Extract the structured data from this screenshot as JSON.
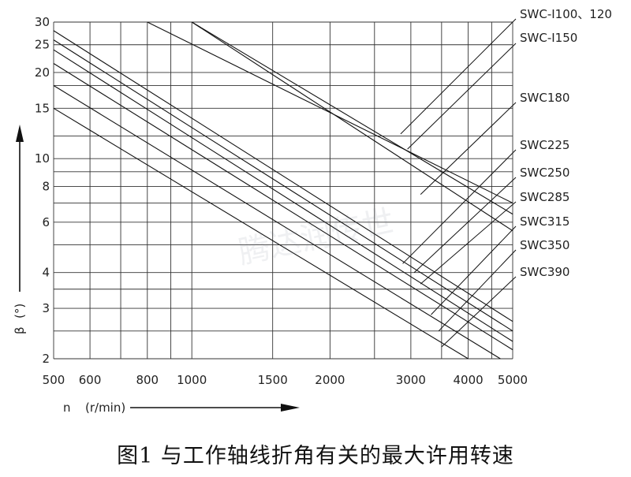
{
  "chart_data": {
    "type": "line",
    "title": "",
    "caption": "图1 与工作轴线折角有关的最大许用转速",
    "xlabel": "n",
    "xunit": "(r/min)",
    "ylabel": "β",
    "yunit": "(°)",
    "x_scale": "log",
    "y_scale": "log",
    "xlim": [
      500,
      5000
    ],
    "ylim": [
      2,
      30
    ],
    "x_ticks": [
      500,
      600,
      800,
      1000,
      1500,
      2000,
      3000,
      4000,
      5000
    ],
    "y_ticks": [
      2,
      3,
      4,
      6,
      8,
      10,
      15,
      20,
      25,
      30
    ],
    "x_grid": [
      500,
      600,
      700,
      800,
      900,
      1000,
      1500,
      2000,
      2500,
      3000,
      3500,
      4000,
      4500,
      5000
    ],
    "y_grid": [
      2,
      2.5,
      3,
      3.5,
      4,
      5,
      6,
      7,
      8,
      9,
      10,
      12,
      15,
      18,
      20,
      25,
      30
    ],
    "grid": true,
    "legend": "labels at right with leader lines",
    "series": [
      {
        "name": "SWC-I100、120",
        "points": [
          [
            800,
            30
          ],
          [
            5000,
            7.0
          ]
        ]
      },
      {
        "name": "SWC-I150",
        "points": [
          [
            1000,
            30
          ],
          [
            5000,
            6.4
          ]
        ]
      },
      {
        "name": "SWC180",
        "points": [
          [
            1000,
            30
          ],
          [
            5000,
            5.6
          ]
        ]
      },
      {
        "name": "SWC225",
        "points": [
          [
            500,
            28
          ],
          [
            5000,
            2.7
          ]
        ]
      },
      {
        "name": "SWC250",
        "points": [
          [
            500,
            26
          ],
          [
            5000,
            2.5
          ]
        ]
      },
      {
        "name": "SWC285",
        "points": [
          [
            500,
            24
          ],
          [
            5000,
            2.3
          ]
        ]
      },
      {
        "name": "SWC315",
        "points": [
          [
            500,
            21.5
          ],
          [
            5000,
            2.15
          ]
        ]
      },
      {
        "name": "SWC350",
        "points": [
          [
            500,
            18
          ],
          [
            4700,
            2.0
          ]
        ]
      },
      {
        "name": "SWC390",
        "points": [
          [
            500,
            15
          ],
          [
            4000,
            2.0
          ]
        ]
      }
    ],
    "leader_lines": [
      {
        "series": "SWC-I100、120",
        "from": [
          2850,
          12.2
        ]
      },
      {
        "series": "SWC-I150",
        "from": [
          2950,
          10.8
        ]
      },
      {
        "series": "SWC180",
        "from": [
          3150,
          7.5
        ]
      },
      {
        "series": "SWC225",
        "from": [
          2880,
          4.3
        ]
      },
      {
        "series": "SWC250",
        "from": [
          3050,
          4.0
        ]
      },
      {
        "series": "SWC285",
        "from": [
          3150,
          3.65
        ]
      },
      {
        "series": "SWC315",
        "from": [
          3320,
          2.85
        ]
      },
      {
        "series": "SWC350",
        "from": [
          3450,
          2.5
        ]
      },
      {
        "series": "SWC390",
        "from": [
          3500,
          2.2
        ]
      }
    ]
  },
  "watermark": "腾达润传世"
}
